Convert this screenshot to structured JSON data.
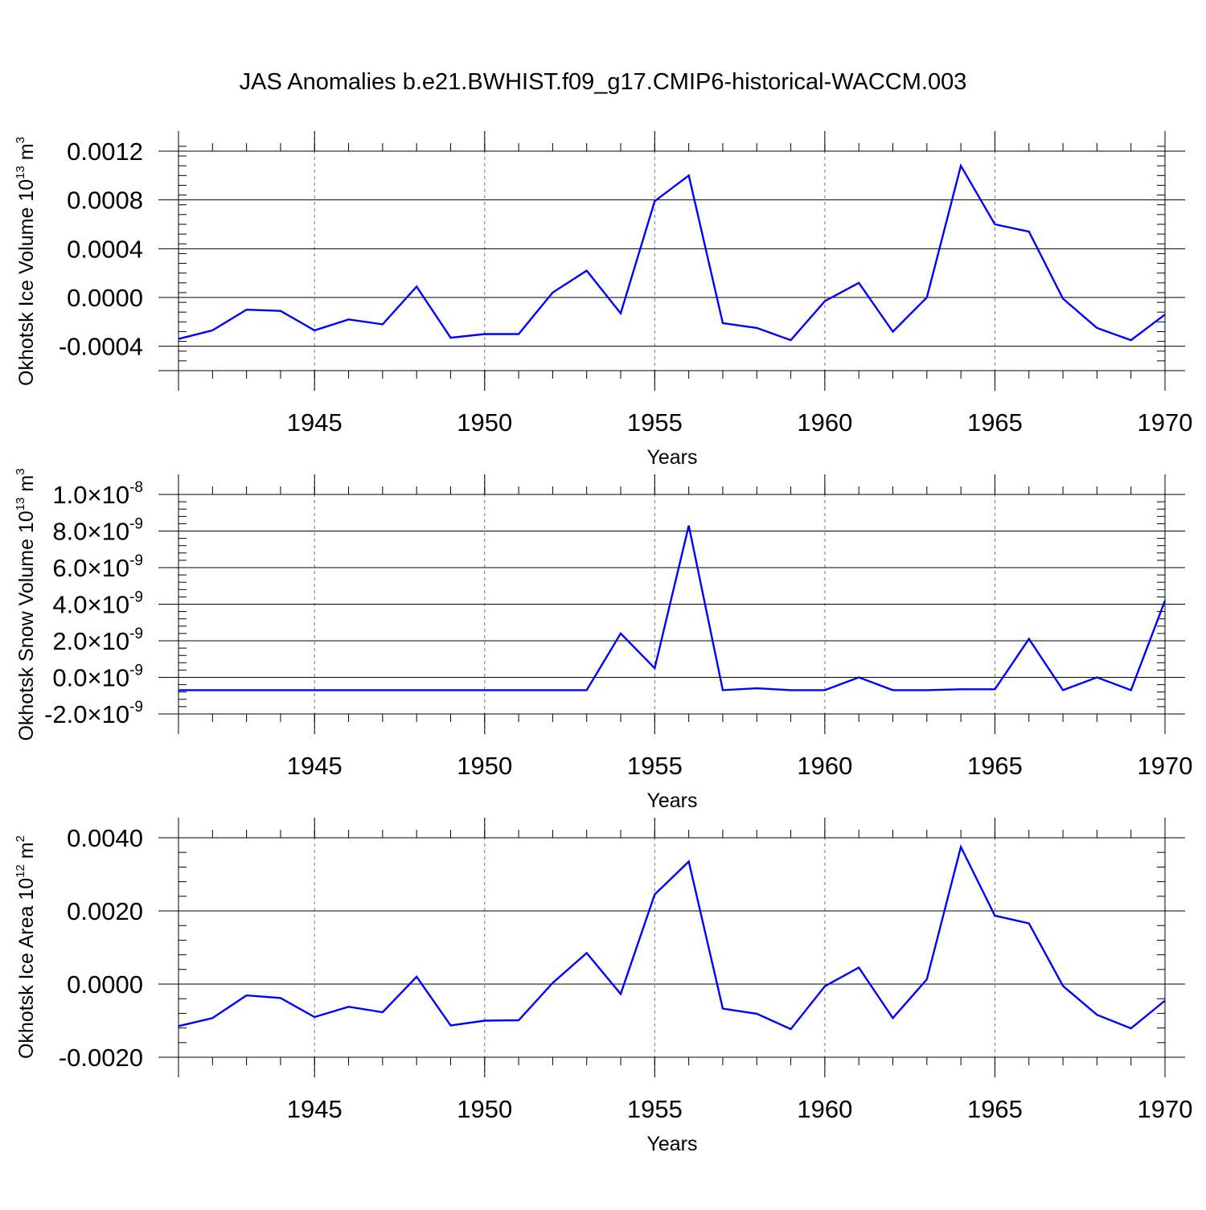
{
  "title": "JAS Anomalies b.e21.BWHIST.f09_g17.CMIP6-historical-WACCM.003",
  "chart_data": [
    {
      "type": "line",
      "ylabel": "Okhotsk Ice Volume 10",
      "ylabel_exp": "13",
      "ylabel_unit": " m",
      "ylabel_unit_exp": "3",
      "xlabel": "Years",
      "xlim": [
        1941,
        1970
      ],
      "ylim": [
        -0.0006,
        0.0012
      ],
      "xticks": [
        "1945",
        "1950",
        "1955",
        "1960",
        "1965",
        "1970"
      ],
      "yticks": [
        {
          "v": 0.0012,
          "m": "0.0012"
        },
        {
          "v": 0.0008,
          "m": "0.0008"
        },
        {
          "v": 0.0004,
          "m": "0.0004"
        },
        {
          "v": 0.0,
          "m": "0.0000"
        },
        {
          "v": -0.0004,
          "m": "-0.0004"
        }
      ],
      "color": "#0000ff",
      "x": [
        1941,
        1942,
        1943,
        1944,
        1945,
        1946,
        1947,
        1948,
        1949,
        1950,
        1951,
        1952,
        1953,
        1954,
        1955,
        1956,
        1957,
        1958,
        1959,
        1960,
        1961,
        1962,
        1963,
        1964,
        1965,
        1966,
        1967,
        1968,
        1969,
        1970
      ],
      "y": [
        -0.00034,
        -0.00027,
        -0.0001,
        -0.00011,
        -0.00027,
        -0.00018,
        -0.00022,
        9e-05,
        -0.00033,
        -0.0003,
        -0.0003,
        4e-05,
        0.00022,
        -0.00013,
        0.00079,
        0.001,
        -0.00021,
        -0.00025,
        -0.00035,
        -3e-05,
        0.00012,
        -0.00028,
        0.0,
        0.00108,
        0.0006,
        0.00054,
        -1e-05,
        -0.00025,
        -0.00035,
        -0.00014
      ]
    },
    {
      "type": "line",
      "ylabel": "Okhotsk Snow Volume 10",
      "ylabel_exp": "13",
      "ylabel_unit": " m",
      "ylabel_unit_exp": "3",
      "xlabel": "Years",
      "xlim": [
        1941,
        1970
      ],
      "ylim": [
        -2e-09,
        1e-08
      ],
      "xticks": [
        "1945",
        "1950",
        "1955",
        "1960",
        "1965",
        "1970"
      ],
      "yticks": [
        {
          "v": 1e-08,
          "m": "1.0",
          "e": "-8"
        },
        {
          "v": 8e-09,
          "m": "8.0",
          "e": "-9"
        },
        {
          "v": 6e-09,
          "m": "6.0",
          "e": "-9"
        },
        {
          "v": 4e-09,
          "m": "4.0",
          "e": "-9"
        },
        {
          "v": 2e-09,
          "m": "2.0",
          "e": "-9"
        },
        {
          "v": 0.0,
          "m": "0.0",
          "e": "-9"
        },
        {
          "v": -2e-09,
          "m": "-2.0",
          "e": "-9"
        }
      ],
      "color": "#0000ff",
      "x": [
        1941,
        1942,
        1943,
        1944,
        1945,
        1946,
        1947,
        1948,
        1949,
        1950,
        1951,
        1952,
        1953,
        1954,
        1955,
        1956,
        1957,
        1958,
        1959,
        1960,
        1961,
        1962,
        1963,
        1964,
        1965,
        1966,
        1967,
        1968,
        1969,
        1970
      ],
      "y": [
        -7e-10,
        -7e-10,
        -7e-10,
        -7e-10,
        -7e-10,
        -7e-10,
        -7e-10,
        -7e-10,
        -7e-10,
        -7e-10,
        -7e-10,
        -7e-10,
        -7e-10,
        2.4e-09,
        5e-10,
        8.3e-09,
        -7e-10,
        -6e-10,
        -7e-10,
        -7e-10,
        0.0,
        -7e-10,
        -7e-10,
        -6.5e-10,
        -6.5e-10,
        2.1e-09,
        -7e-10,
        0.0,
        -7e-10,
        4.2e-09
      ]
    },
    {
      "type": "line",
      "ylabel": "Okhotsk Ice Area 10",
      "ylabel_exp": "12",
      "ylabel_unit": " m",
      "ylabel_unit_exp": "2",
      "xlabel": "Years",
      "xlim": [
        1941,
        1970
      ],
      "ylim": [
        -0.002,
        0.004
      ],
      "xticks": [
        "1945",
        "1950",
        "1955",
        "1960",
        "1965",
        "1970"
      ],
      "yticks": [
        {
          "v": 0.004,
          "m": "0.0040"
        },
        {
          "v": 0.002,
          "m": "0.0020"
        },
        {
          "v": 0.0,
          "m": "0.0000"
        },
        {
          "v": -0.002,
          "m": "-0.0020"
        }
      ],
      "color": "#0000ff",
      "x": [
        1941,
        1942,
        1943,
        1944,
        1945,
        1946,
        1947,
        1948,
        1949,
        1950,
        1951,
        1952,
        1953,
        1954,
        1955,
        1956,
        1957,
        1958,
        1959,
        1960,
        1961,
        1962,
        1963,
        1964,
        1965,
        1966,
        1967,
        1968,
        1969,
        1970
      ],
      "y": [
        -0.00115,
        -0.00093,
        -0.00031,
        -0.00038,
        -0.0009,
        -0.00062,
        -0.00077,
        0.0002,
        -0.00113,
        -0.001,
        -0.00099,
        3e-05,
        0.00085,
        -0.00027,
        0.00245,
        0.00335,
        -0.00067,
        -0.00081,
        -0.00123,
        -6e-05,
        0.00045,
        -0.00093,
        0.00013,
        0.00375,
        0.00187,
        0.00166,
        -5e-05,
        -0.00084,
        -0.00121,
        -0.00045
      ]
    }
  ]
}
